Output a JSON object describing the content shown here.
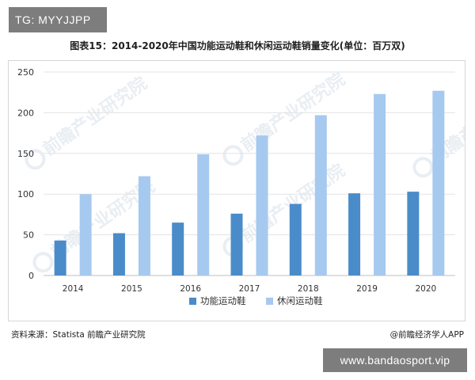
{
  "top_tag": "TG: MYYJJPP",
  "bottom_tag": "www.bandaosport.vip",
  "source": "资料来源：Statista 前瞻产业研究院",
  "credit": "@前瞻经济学人APP",
  "watermark": "前瞻产业研究院",
  "colors": {
    "functional": "#4a8cc9",
    "casual": "#a6c9ef",
    "grid": "#e3e3e3",
    "axis": "#bfbfbf"
  },
  "chart_data": {
    "type": "bar",
    "title": "图表15：2014-2020年中国功能运动鞋和休闲运动鞋销量变化(单位：百万双)",
    "categories": [
      "2014",
      "2015",
      "2016",
      "2017",
      "2018",
      "2019",
      "2020"
    ],
    "series": [
      {
        "name": "功能运动鞋",
        "values": [
          43,
          52,
          65,
          76,
          88,
          101,
          103
        ]
      },
      {
        "name": "休闲运动鞋",
        "values": [
          100,
          122,
          149,
          172,
          197,
          223,
          227
        ]
      }
    ],
    "yticks": [
      "0",
      "50",
      "100",
      "150",
      "200",
      "250"
    ],
    "ylim": [
      0,
      250
    ],
    "grid": true,
    "legend_position": "bottom"
  }
}
